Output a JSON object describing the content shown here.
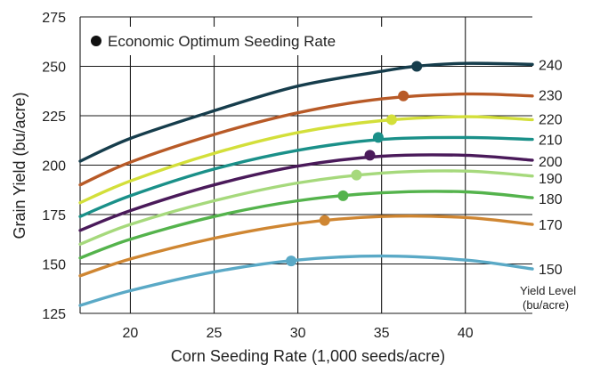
{
  "chart_data": {
    "type": "line",
    "xlabel": "Corn Seeding Rate (1,000 seeds/acre)",
    "ylabel": "Grain Yield (bu/acre)",
    "xlim": [
      17,
      44
    ],
    "ylim": [
      125,
      275
    ],
    "x_ticks": [
      20,
      25,
      30,
      35,
      40
    ],
    "y_ticks": [
      125,
      150,
      175,
      200,
      225,
      250,
      275
    ],
    "grid": true,
    "legend": {
      "label": "Economic Optimum Seeding Rate",
      "position": "top-left",
      "marker_color": "#111111"
    },
    "right_axis_title": [
      "Yield Level",
      "(bu/acre)"
    ],
    "series": [
      {
        "name": "240",
        "color": "#163d4c",
        "x": [
          17,
          20,
          25,
          30,
          35,
          37,
          40,
          44
        ],
        "y": [
          202,
          213.5,
          227.5,
          240,
          247.5,
          250,
          251.5,
          251
        ],
        "optimum": {
          "x": 37.1,
          "y": 250
        }
      },
      {
        "name": "230",
        "color": "#b85a27",
        "x": [
          17,
          20,
          25,
          30,
          35,
          40,
          44
        ],
        "y": [
          190,
          201.5,
          215.5,
          226.5,
          233.5,
          236,
          235
        ],
        "optimum": {
          "x": 36.3,
          "y": 235
        }
      },
      {
        "name": "220",
        "color": "#d3df3a",
        "x": [
          17,
          20,
          25,
          30,
          35,
          40,
          44
        ],
        "y": [
          181,
          192,
          206,
          216.5,
          222.5,
          224.5,
          223
        ],
        "optimum": {
          "x": 35.6,
          "y": 223
        }
      },
      {
        "name": "210",
        "color": "#1a9089",
        "x": [
          17,
          20,
          25,
          30,
          35,
          40,
          44
        ],
        "y": [
          174,
          184.5,
          198,
          207.5,
          213,
          214,
          213
        ],
        "optimum": {
          "x": 34.8,
          "y": 214
        }
      },
      {
        "name": "200",
        "color": "#4a1a5a",
        "x": [
          17,
          20,
          25,
          30,
          35,
          40,
          44
        ],
        "y": [
          167,
          177,
          190,
          199.5,
          204.5,
          205,
          202.5
        ],
        "optimum": {
          "x": 34.3,
          "y": 205
        }
      },
      {
        "name": "190",
        "color": "#a6d97c",
        "x": [
          17,
          20,
          25,
          30,
          35,
          40,
          44
        ],
        "y": [
          160,
          170,
          182,
          191,
          196,
          197,
          194.5
        ],
        "optimum": {
          "x": 33.5,
          "y": 195
        }
      },
      {
        "name": "180",
        "color": "#54b34c",
        "x": [
          17,
          20,
          25,
          30,
          35,
          40,
          44
        ],
        "y": [
          153,
          162.5,
          174,
          182,
          186,
          186.5,
          183.5
        ],
        "optimum": {
          "x": 32.7,
          "y": 184.5
        }
      },
      {
        "name": "170",
        "color": "#cf8632",
        "x": [
          17,
          20,
          25,
          30,
          35,
          40,
          44
        ],
        "y": [
          144,
          152.5,
          163,
          170.5,
          174,
          173.5,
          170
        ],
        "optimum": {
          "x": 31.6,
          "y": 172
        }
      },
      {
        "name": "150",
        "color": "#5aa9c6",
        "x": [
          17,
          20,
          25,
          30,
          35,
          40,
          44
        ],
        "y": [
          129,
          136.5,
          146,
          152,
          154,
          152,
          147.5
        ],
        "optimum": {
          "x": 29.6,
          "y": 151.5
        }
      }
    ],
    "level_labels": [
      {
        "text": "240",
        "y": 251
      },
      {
        "text": "230",
        "y": 235.5
      },
      {
        "text": "220",
        "y": 223.5
      },
      {
        "text": "210",
        "y": 213
      },
      {
        "text": "200",
        "y": 202
      },
      {
        "text": "190",
        "y": 193.5
      },
      {
        "text": "180",
        "y": 183
      },
      {
        "text": "170",
        "y": 170
      },
      {
        "text": "150",
        "y": 147.5
      }
    ]
  }
}
